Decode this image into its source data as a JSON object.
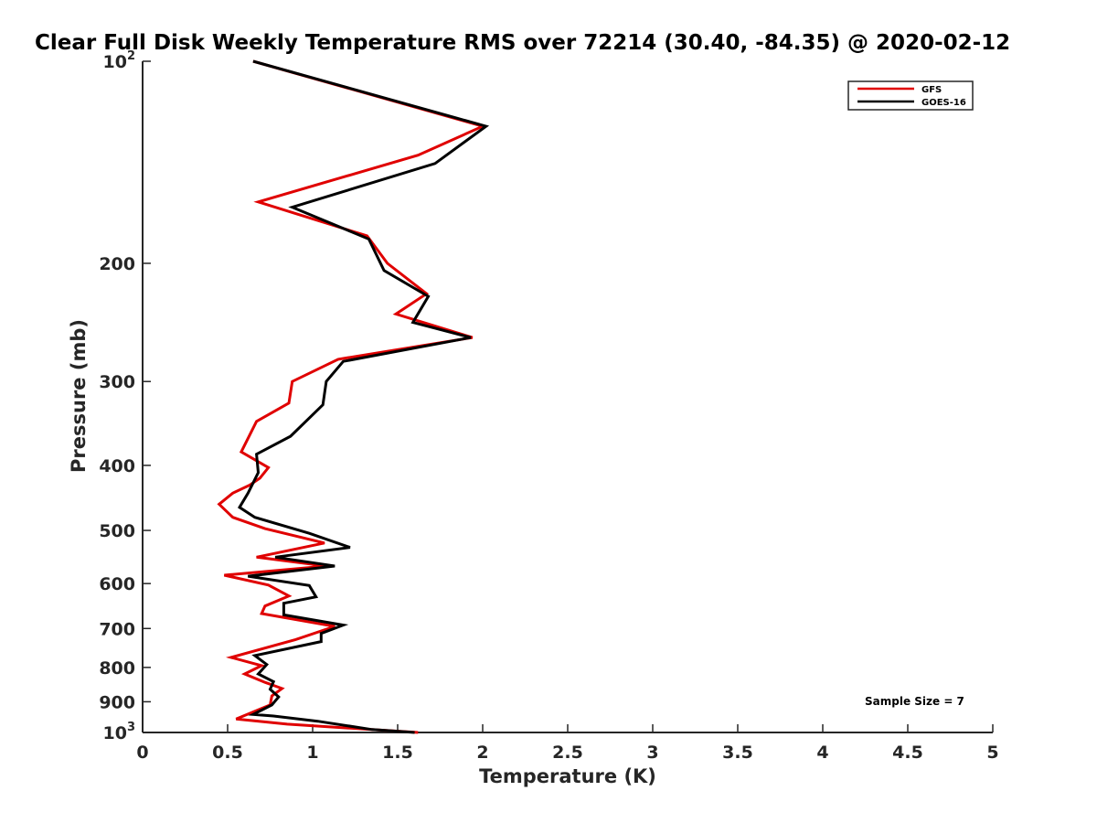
{
  "chart_data": {
    "type": "line",
    "title": "Clear Full Disk Weekly Temperature RMS over 72214 (30.40, -84.35) @ 2020-02-12",
    "xlabel": "Temperature (K)",
    "ylabel": "Pressure (mb)",
    "xlim": [
      0,
      5
    ],
    "ylim": [
      100,
      1000
    ],
    "yscale": "log",
    "y_reversed": true,
    "grid": false,
    "legend_position": "top-right",
    "x_ticks": [
      {
        "value": 0,
        "label": "0"
      },
      {
        "value": 0.5,
        "label": "0.5"
      },
      {
        "value": 1,
        "label": "1"
      },
      {
        "value": 1.5,
        "label": "1.5"
      },
      {
        "value": 2,
        "label": "2"
      },
      {
        "value": 2.5,
        "label": "2.5"
      },
      {
        "value": 3,
        "label": "3"
      },
      {
        "value": 3.5,
        "label": "3.5"
      },
      {
        "value": 4,
        "label": "4"
      },
      {
        "value": 4.5,
        "label": "4.5"
      },
      {
        "value": 5,
        "label": "5"
      }
    ],
    "y_ticks": [
      {
        "value": 100,
        "label": "10",
        "sup": "2"
      },
      {
        "value": 200,
        "label": "200"
      },
      {
        "value": 300,
        "label": "300"
      },
      {
        "value": 400,
        "label": "400"
      },
      {
        "value": 500,
        "label": "500"
      },
      {
        "value": 600,
        "label": "600"
      },
      {
        "value": 700,
        "label": "700"
      },
      {
        "value": 800,
        "label": "800"
      },
      {
        "value": 900,
        "label": "900"
      },
      {
        "value": 1000,
        "label": "10",
        "sup": "3"
      }
    ],
    "series": [
      {
        "name": "GFS",
        "color": "#e00000",
        "points": [
          [
            0.65,
            100
          ],
          [
            2.0,
            125
          ],
          [
            1.62,
            138
          ],
          [
            0.68,
            162
          ],
          [
            1.32,
            182
          ],
          [
            1.44,
            200
          ],
          [
            1.67,
            222
          ],
          [
            1.49,
            238
          ],
          [
            1.94,
            258
          ],
          [
            1.15,
            278
          ],
          [
            0.88,
            300
          ],
          [
            0.86,
            323
          ],
          [
            0.67,
            344
          ],
          [
            0.58,
            382
          ],
          [
            0.74,
            403
          ],
          [
            0.69,
            418
          ],
          [
            0.63,
            428
          ],
          [
            0.53,
            440
          ],
          [
            0.45,
            457
          ],
          [
            0.53,
            478
          ],
          [
            0.72,
            497
          ],
          [
            1.07,
            522
          ],
          [
            0.67,
            548
          ],
          [
            1.08,
            565
          ],
          [
            0.48,
            583
          ],
          [
            0.74,
            603
          ],
          [
            0.86,
            626
          ],
          [
            0.72,
            648
          ],
          [
            0.7,
            665
          ],
          [
            1.13,
            695
          ],
          [
            0.9,
            727
          ],
          [
            0.52,
            773
          ],
          [
            0.7,
            795
          ],
          [
            0.6,
            818
          ],
          [
            0.72,
            842
          ],
          [
            0.82,
            860
          ],
          [
            0.76,
            882
          ],
          [
            0.75,
            910
          ],
          [
            0.55,
            955
          ],
          [
            0.85,
            972
          ],
          [
            1.62,
            1000
          ]
        ]
      },
      {
        "name": "GOES-16",
        "color": "#000000",
        "points": [
          [
            0.65,
            100
          ],
          [
            2.02,
            125
          ],
          [
            1.72,
            142
          ],
          [
            0.88,
            165
          ],
          [
            1.33,
            184
          ],
          [
            1.42,
            205
          ],
          [
            1.68,
            224
          ],
          [
            1.59,
            245
          ],
          [
            1.93,
            258
          ],
          [
            1.18,
            280
          ],
          [
            1.08,
            300
          ],
          [
            1.06,
            325
          ],
          [
            0.87,
            362
          ],
          [
            0.67,
            385
          ],
          [
            0.68,
            410
          ],
          [
            0.62,
            440
          ],
          [
            0.57,
            462
          ],
          [
            0.66,
            478
          ],
          [
            0.98,
            505
          ],
          [
            1.22,
            530
          ],
          [
            0.78,
            548
          ],
          [
            1.13,
            565
          ],
          [
            0.62,
            585
          ],
          [
            0.98,
            604
          ],
          [
            1.02,
            628
          ],
          [
            0.83,
            642
          ],
          [
            0.83,
            668
          ],
          [
            1.18,
            692
          ],
          [
            1.05,
            712
          ],
          [
            1.05,
            732
          ],
          [
            0.66,
            768
          ],
          [
            0.73,
            792
          ],
          [
            0.68,
            818
          ],
          [
            0.77,
            840
          ],
          [
            0.75,
            862
          ],
          [
            0.8,
            885
          ],
          [
            0.76,
            910
          ],
          [
            0.65,
            940
          ],
          [
            0.77,
            945
          ],
          [
            1.03,
            962
          ],
          [
            1.35,
            990
          ],
          [
            1.6,
            1000
          ]
        ]
      }
    ],
    "legend": [
      "GFS",
      "GOES-16"
    ],
    "annotations": [
      {
        "text": "Sample Size = 7",
        "position": "bottom-right"
      }
    ]
  }
}
